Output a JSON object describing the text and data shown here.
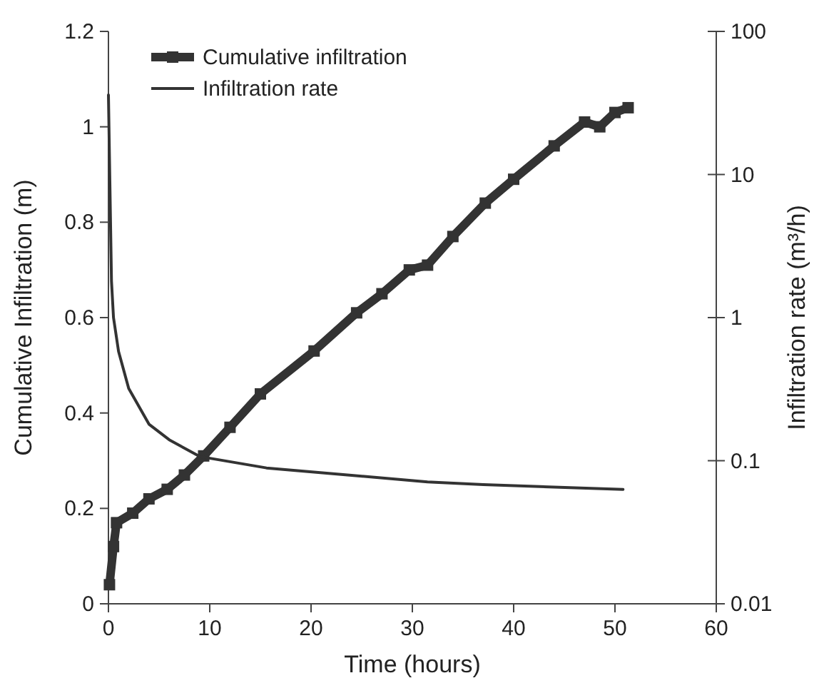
{
  "chart_data": {
    "type": "line",
    "xlabel": "Time (hours)",
    "ylabel": "Cumulative Infiltration (m)",
    "y2label": "Infiltration rate (m³/h)",
    "xlim": [
      0,
      60
    ],
    "xticks": [
      0,
      10,
      20,
      30,
      40,
      50,
      60
    ],
    "ylim": [
      0,
      1.2
    ],
    "yticks": [
      0,
      0.2,
      0.4,
      0.6,
      0.8,
      1,
      1.2
    ],
    "y2lim": [
      0.01,
      100
    ],
    "y2ticks": [
      0.01,
      0.1,
      1,
      10,
      100
    ],
    "log": "y2",
    "legend": "top left",
    "grid": false,
    "series": [
      {
        "name": "Cumulative infiltration",
        "color": "#333333",
        "marker": "square",
        "x": [
          0.1,
          0.5,
          0.8,
          2.4,
          4,
          5.8,
          7.5,
          9.4,
          12,
          15,
          20.3,
          24.5,
          27,
          29.7,
          31.5,
          34,
          37.2,
          40,
          44,
          47,
          48.5,
          50,
          51.3
        ],
        "values": [
          0.04,
          0.12,
          0.17,
          0.19,
          0.22,
          0.24,
          0.27,
          0.31,
          0.37,
          0.44,
          0.53,
          0.61,
          0.65,
          0.7,
          0.71,
          0.77,
          0.84,
          0.89,
          0.96,
          1.01,
          1,
          1.03,
          1.04
        ]
      },
      {
        "name": "Infiltration rate",
        "color": "#333333",
        "marker": "none",
        "axis": "y2",
        "x": [
          0,
          0.3,
          0.5,
          1,
          2,
          4,
          6,
          9,
          15.6,
          24,
          31.5,
          37,
          50.8
        ],
        "values": [
          36,
          1.8,
          1,
          0.58,
          0.32,
          0.18,
          0.14,
          0.107,
          0.089,
          0.079,
          0.071,
          0.068,
          0.063
        ]
      }
    ]
  }
}
